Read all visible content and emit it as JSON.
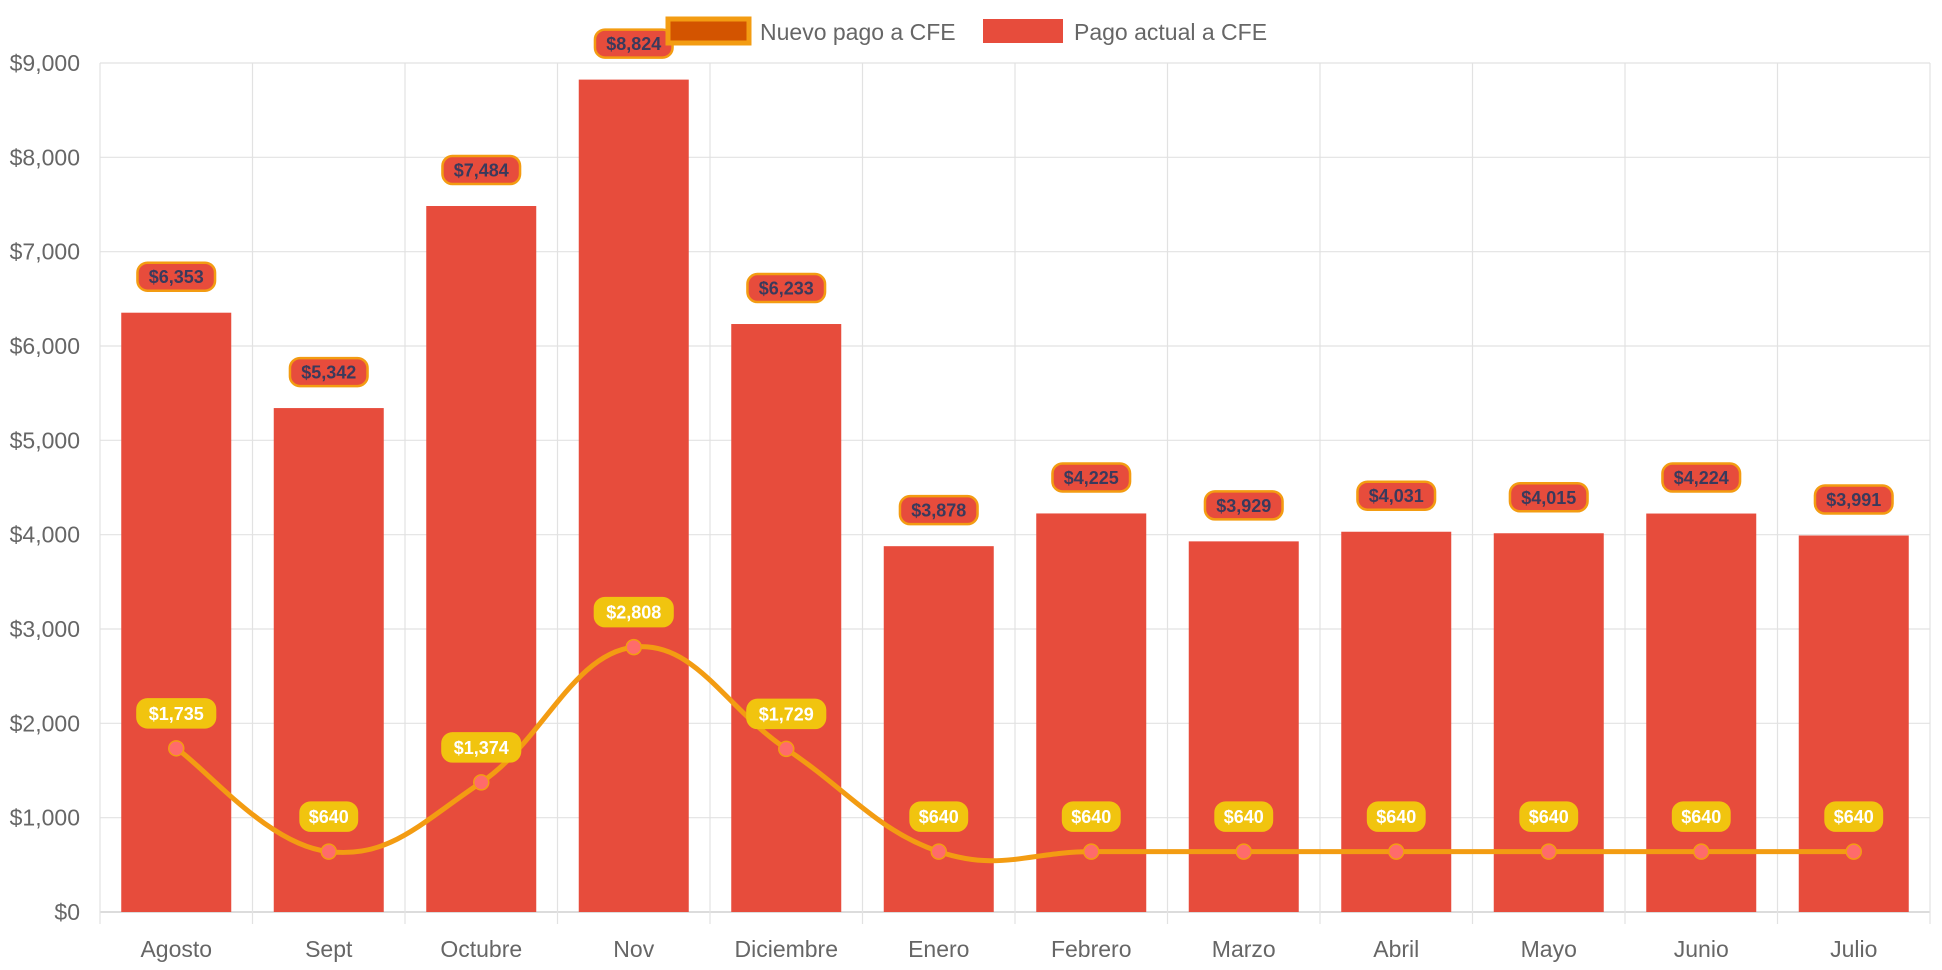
{
  "chart_data": {
    "type": "bar",
    "categories": [
      "Agosto",
      "Sept",
      "Octubre",
      "Nov",
      "Diciembre",
      "Enero",
      "Febrero",
      "Marzo",
      "Abril",
      "Mayo",
      "Junio",
      "Julio"
    ],
    "ylim": [
      0,
      9000
    ],
    "y_ticks": [
      0,
      1000,
      2000,
      3000,
      4000,
      5000,
      6000,
      7000,
      8000,
      9000
    ],
    "y_tick_labels": [
      "$0",
      "$1,000",
      "$2,000",
      "$3,000",
      "$4,000",
      "$5,000",
      "$6,000",
      "$7,000",
      "$8,000",
      "$9,000"
    ],
    "grid": true,
    "legend_position": "top-center",
    "series": [
      {
        "name": "Nuevo pago a CFE",
        "type": "line",
        "color": "#f39c12",
        "point_color": "#ff6b6b",
        "legend_fill": "#d35400",
        "values": [
          1735,
          640,
          1374,
          2808,
          1729,
          640,
          640,
          640,
          640,
          640,
          640,
          640
        ],
        "labels": [
          "$1,735",
          "$640",
          "$1,374",
          "$2,808",
          "$1,729",
          "$640",
          "$640",
          "$640",
          "$640",
          "$640",
          "$640",
          "$640"
        ],
        "label_bg": "#f1c40f"
      },
      {
        "name": "Pago actual a CFE",
        "type": "bar",
        "color": "#e74c3c",
        "values": [
          6353,
          5342,
          7484,
          8824,
          6233,
          3878,
          4225,
          3929,
          4031,
          4015,
          4224,
          3991
        ],
        "labels": [
          "$6,353",
          "$5,342",
          "$7,484",
          "$8,824",
          "$6,233",
          "$3,878",
          "$4,225",
          "$3,929",
          "$4,031",
          "$4,015",
          "$4,224",
          "$3,991"
        ],
        "label_border": "#f39c12"
      }
    ]
  }
}
